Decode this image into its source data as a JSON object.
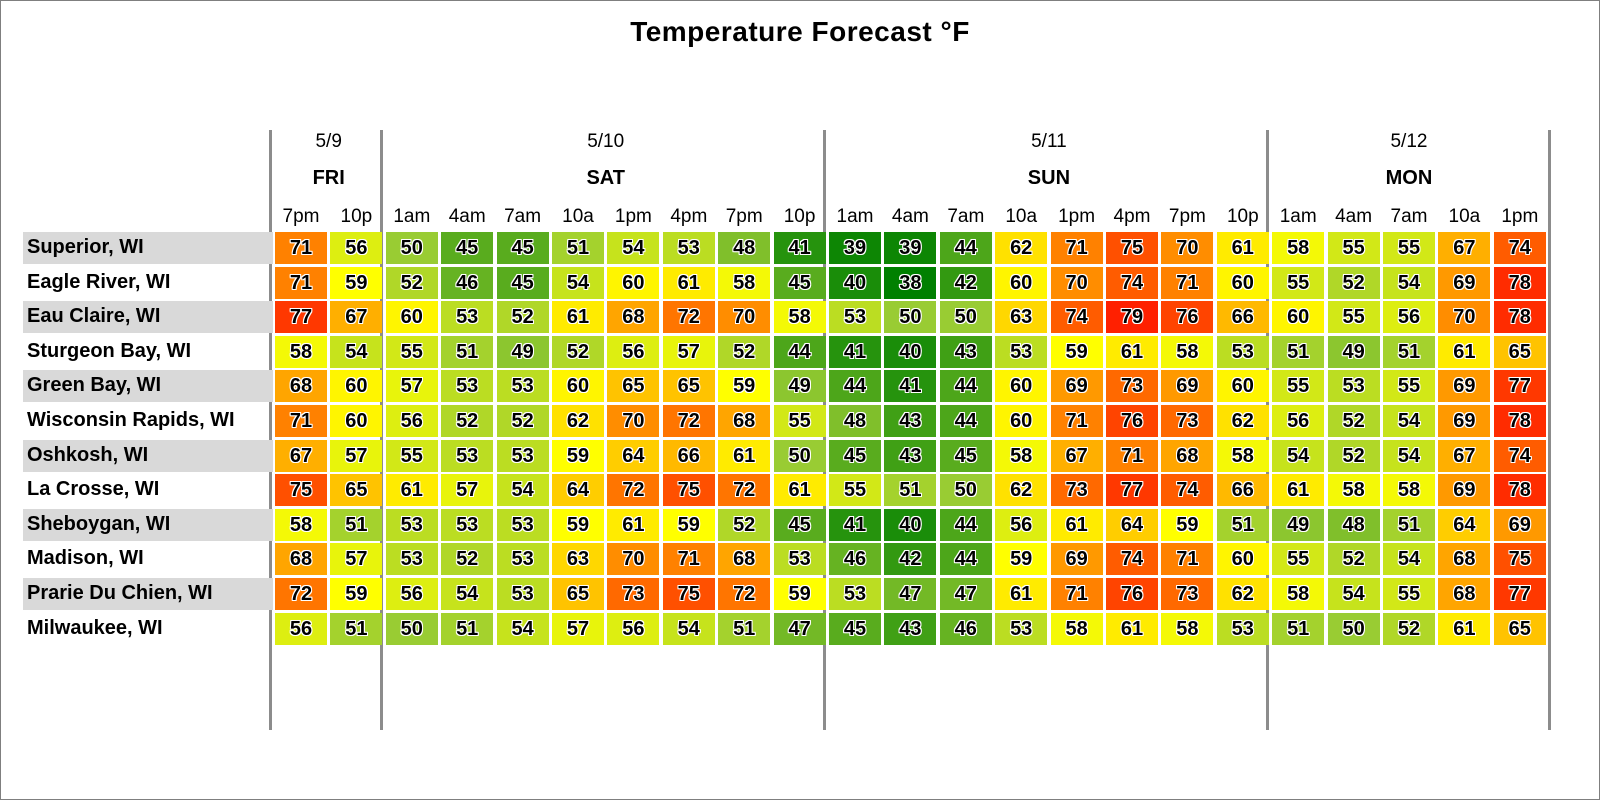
{
  "chart_data": {
    "type": "heatmap",
    "title": "Temperature Forecast °F",
    "days": [
      {
        "date": "5/9",
        "name": "FRI",
        "hours": [
          "7pm",
          "10p"
        ]
      },
      {
        "date": "5/10",
        "name": "SAT",
        "hours": [
          "1am",
          "4am",
          "7am",
          "10a",
          "1pm",
          "4pm",
          "7pm",
          "10p"
        ]
      },
      {
        "date": "5/11",
        "name": "SUN",
        "hours": [
          "1am",
          "4am",
          "7am",
          "10a",
          "1pm",
          "4pm",
          "7pm",
          "10p"
        ]
      },
      {
        "date": "5/12",
        "name": "MON",
        "hours": [
          "1am",
          "4am",
          "7am",
          "10a",
          "1pm"
        ]
      }
    ],
    "rows": [
      {
        "city": "Superior, WI",
        "values": [
          71,
          56,
          50,
          45,
          45,
          51,
          54,
          53,
          48,
          41,
          39,
          39,
          44,
          62,
          71,
          75,
          70,
          61,
          58,
          55,
          55,
          67,
          74
        ]
      },
      {
        "city": "Eagle River, WI",
        "values": [
          71,
          59,
          52,
          46,
          45,
          54,
          60,
          61,
          58,
          45,
          40,
          38,
          42,
          60,
          70,
          74,
          71,
          60,
          55,
          52,
          54,
          69,
          78
        ]
      },
      {
        "city": "Eau Claire, WI",
        "values": [
          77,
          67,
          60,
          53,
          52,
          61,
          68,
          72,
          70,
          58,
          53,
          50,
          50,
          63,
          74,
          79,
          76,
          66,
          60,
          55,
          56,
          70,
          78
        ]
      },
      {
        "city": "Sturgeon Bay, WI",
        "values": [
          58,
          54,
          55,
          51,
          49,
          52,
          56,
          57,
          52,
          44,
          41,
          40,
          43,
          53,
          59,
          61,
          58,
          53,
          51,
          49,
          51,
          61,
          65
        ]
      },
      {
        "city": "Green Bay, WI",
        "values": [
          68,
          60,
          57,
          53,
          53,
          60,
          65,
          65,
          59,
          49,
          44,
          41,
          44,
          60,
          69,
          73,
          69,
          60,
          55,
          53,
          55,
          69,
          77
        ]
      },
      {
        "city": "Wisconsin Rapids, WI",
        "values": [
          71,
          60,
          56,
          52,
          52,
          62,
          70,
          72,
          68,
          55,
          48,
          43,
          44,
          60,
          71,
          76,
          73,
          62,
          56,
          52,
          54,
          69,
          78
        ]
      },
      {
        "city": "Oshkosh, WI",
        "values": [
          67,
          57,
          55,
          53,
          53,
          59,
          64,
          66,
          61,
          50,
          45,
          43,
          45,
          58,
          67,
          71,
          68,
          58,
          54,
          52,
          54,
          67,
          74
        ]
      },
      {
        "city": "La Crosse, WI",
        "values": [
          75,
          65,
          61,
          57,
          54,
          64,
          72,
          75,
          72,
          61,
          55,
          51,
          50,
          62,
          73,
          77,
          74,
          66,
          61,
          58,
          58,
          69,
          78
        ]
      },
      {
        "city": "Sheboygan, WI",
        "values": [
          58,
          51,
          53,
          53,
          53,
          59,
          61,
          59,
          52,
          45,
          41,
          40,
          44,
          56,
          61,
          64,
          59,
          51,
          49,
          48,
          51,
          64,
          69
        ]
      },
      {
        "city": "Madison, WI",
        "values": [
          68,
          57,
          53,
          52,
          53,
          63,
          70,
          71,
          68,
          53,
          46,
          42,
          44,
          59,
          69,
          74,
          71,
          60,
          55,
          52,
          54,
          68,
          75
        ]
      },
      {
        "city": "Prarie Du Chien, WI",
        "values": [
          72,
          59,
          56,
          54,
          53,
          65,
          73,
          75,
          72,
          59,
          53,
          47,
          47,
          61,
          71,
          76,
          73,
          62,
          58,
          54,
          55,
          68,
          77
        ]
      },
      {
        "city": "Milwaukee, WI",
        "values": [
          56,
          51,
          50,
          51,
          54,
          57,
          56,
          54,
          51,
          47,
          45,
          43,
          46,
          53,
          58,
          61,
          58,
          53,
          51,
          50,
          52,
          61,
          65
        ]
      }
    ],
    "color_scale": {
      "stops": [
        {
          "value": 38,
          "color": "#008000"
        },
        {
          "value": 50,
          "color": "#99cc33"
        },
        {
          "value": 59,
          "color": "#ffff00"
        },
        {
          "value": 68,
          "color": "#ffa500"
        },
        {
          "value": 79,
          "color": "#ff2000"
        }
      ]
    },
    "row_shading": "alternating light gray"
  }
}
